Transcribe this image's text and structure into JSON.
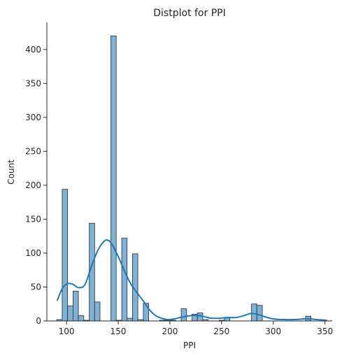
{
  "chart_data": {
    "type": "bar",
    "subtype": "histogram-with-kde",
    "title": "Distplot for PPI",
    "xlabel": "PPI",
    "ylabel": "Count",
    "xlim": [
      81,
      357
    ],
    "ylim": [
      0,
      440
    ],
    "xticks": [
      100,
      150,
      200,
      250,
      300,
      350
    ],
    "yticks": [
      0,
      50,
      100,
      150,
      200,
      250,
      300,
      350,
      400
    ],
    "bin_edges": [
      90.6,
      95.8,
      101.0,
      106.3,
      111.5,
      116.7,
      122.0,
      127.2,
      132.4,
      137.7,
      142.9,
      148.1,
      153.4,
      158.6,
      163.8,
      169.0,
      174.3,
      179.5,
      184.7,
      190.0,
      195.2,
      200.4,
      205.7,
      210.9,
      216.1,
      221.4,
      226.6,
      231.8,
      237.0,
      242.3,
      247.5,
      252.7,
      258.0,
      263.2,
      268.4,
      273.7,
      278.9,
      284.1,
      289.4,
      294.6,
      299.8,
      305.0,
      310.3,
      315.5,
      320.7,
      326.0,
      331.2,
      336.4,
      341.7,
      346.9,
      352.1
    ],
    "counts": [
      2,
      194,
      22,
      44,
      8,
      1,
      144,
      28,
      0,
      0,
      420,
      1,
      122,
      4,
      99,
      2,
      26,
      0,
      0,
      1,
      1,
      1,
      0,
      18,
      0,
      10,
      12,
      2,
      0,
      0,
      1,
      5,
      0,
      0,
      0,
      0,
      25,
      23,
      0,
      0,
      0,
      0,
      0,
      0,
      0,
      0,
      7,
      0,
      0,
      0
    ],
    "kde": {
      "x": [
        91,
        96,
        101,
        106,
        112,
        118,
        124,
        130,
        136,
        140,
        144,
        150,
        156,
        162,
        168,
        174,
        180,
        186,
        192,
        198,
        204,
        210,
        216,
        222,
        228,
        234,
        240,
        248,
        256,
        264,
        272,
        278,
        284,
        290,
        300,
        310,
        320,
        330,
        336,
        342,
        352
      ],
      "y": [
        30,
        48,
        55,
        54,
        49,
        54,
        80,
        103,
        117,
        119,
        113,
        95,
        74,
        55,
        42,
        30,
        17,
        8,
        4,
        2,
        3,
        5,
        7,
        8,
        8,
        6,
        4,
        4,
        5,
        5,
        8,
        11,
        10,
        7,
        3,
        2,
        2,
        3,
        3,
        2,
        1
      ]
    }
  }
}
